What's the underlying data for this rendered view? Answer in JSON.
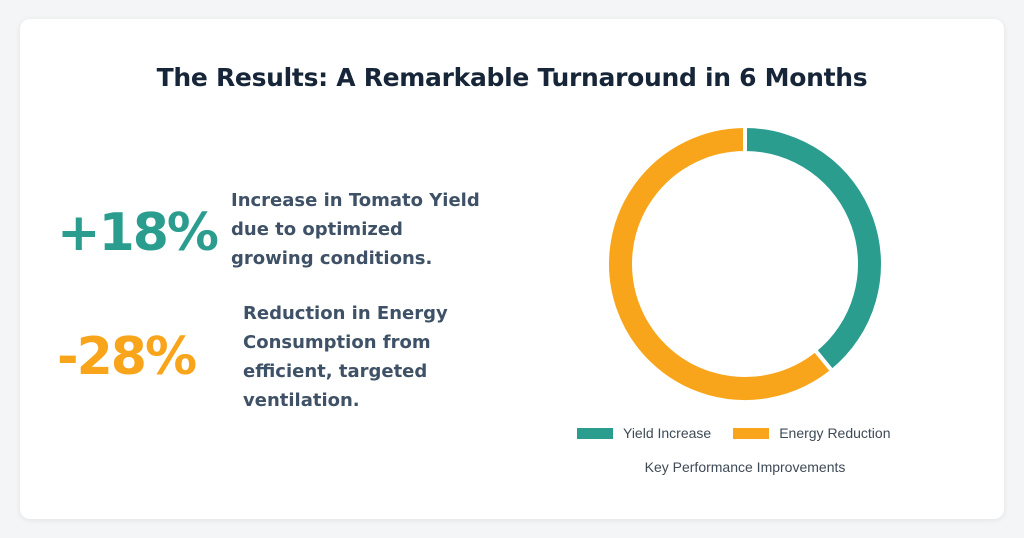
{
  "title": "The Results: A Remarkable Turnaround in 6 Months",
  "stats": [
    {
      "value": "+18%",
      "color": "#2a9d8f",
      "lines": [
        "Increase in Tomato Yield",
        "due to optimized",
        "growing conditions."
      ]
    },
    {
      "value": "-28%",
      "color": "#f8a51b",
      "lines": [
        "Reduction in Energy",
        "Consumption from",
        "efficient, targeted",
        "ventilation."
      ]
    }
  ],
  "chart_data": {
    "type": "doughnut",
    "categories": [
      "Yield Increase",
      "Energy Reduction"
    ],
    "values": [
      18,
      28
    ],
    "colors": [
      "#2a9d8f",
      "#f8a51b"
    ],
    "legend_position": "bottom",
    "caption": "Key Performance Improvements"
  }
}
